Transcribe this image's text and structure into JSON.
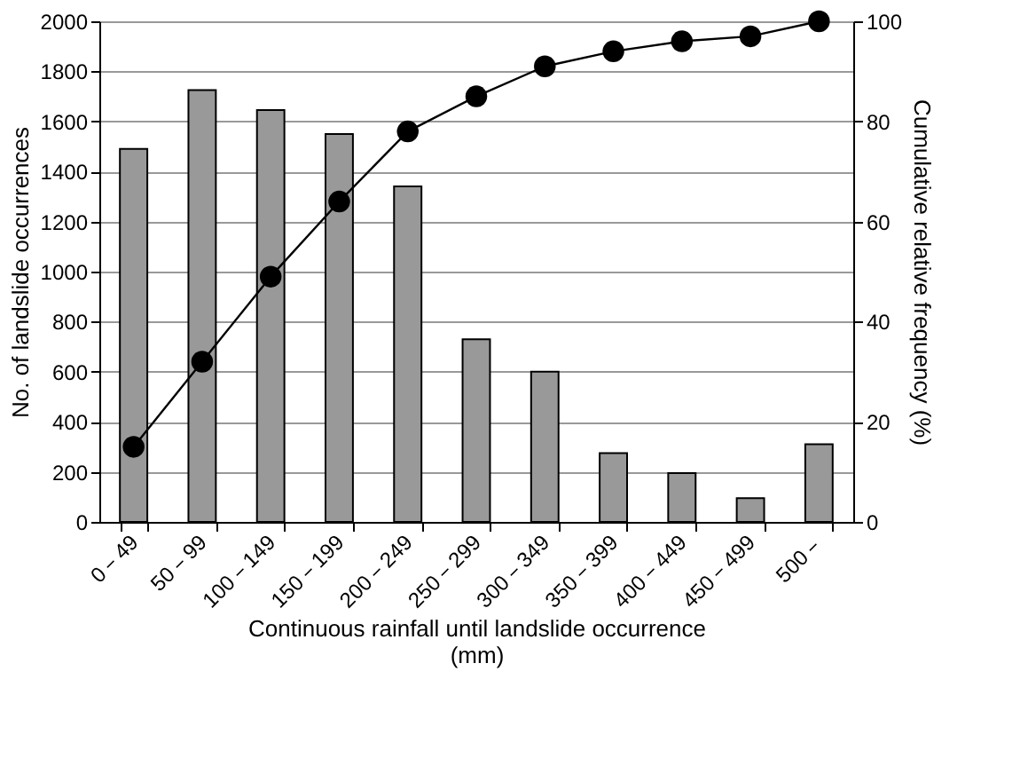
{
  "chart_data": {
    "type": "bar",
    "xlabel": "Continuous rainfall until landslide occurrence (mm)",
    "ylabel": "No. of landslide occurrences",
    "y2label": "Cumulative relative frequency (%)",
    "categories": [
      "0－49",
      "50－99",
      "100－149",
      "150－199",
      "200－249",
      "250－299",
      "300－349",
      "350－399",
      "400－449",
      "450－499",
      "500－"
    ],
    "series": [
      {
        "color": "#999999",
        "values": [
          1490,
          1725,
          1645,
          1550,
          1340,
          730,
          600,
          275,
          195,
          95,
          310
        ]
      },
      {
        "type": "line",
        "axis": "y2",
        "color": "#000000",
        "marker": "circle",
        "line_style": "solid",
        "values": [
          15,
          32,
          49,
          64,
          78,
          85,
          91,
          94,
          96,
          97,
          100
        ]
      }
    ],
    "ylim": [
      0,
      2000
    ],
    "yticks": [
      0,
      200,
      400,
      600,
      800,
      1000,
      1200,
      1400,
      1600,
      1800,
      2000
    ],
    "y2lim": [
      0,
      100
    ],
    "y2ticks": [
      0,
      20,
      40,
      60,
      80,
      100
    ],
    "grid": "y"
  }
}
